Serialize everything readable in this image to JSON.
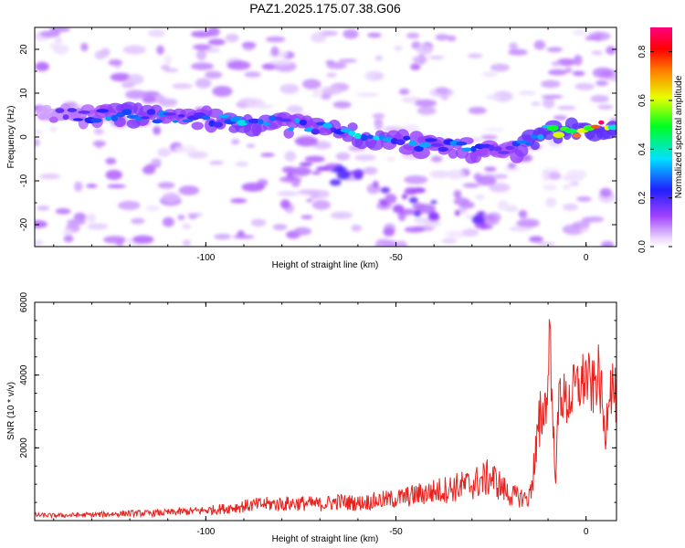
{
  "figure": {
    "title": "PAZ1.2025.175.07.38.G06"
  },
  "chart_data": [
    {
      "type": "heatmap",
      "title": "PAZ1.2025.175.07.38.G06",
      "xlabel": "Height of straight line (km)",
      "ylabel": "Frequency (Hz)",
      "xlim": [
        -145,
        8
      ],
      "ylim": [
        -25,
        25
      ],
      "xticks": [
        -100,
        -50,
        0
      ],
      "yticks": [
        -20,
        -10,
        0,
        10,
        20
      ],
      "grid": false,
      "colorbar": {
        "label": "Normalized spectral amplitude",
        "range": [
          0,
          0.9
        ],
        "ticks": [
          0.0,
          0.2,
          0.4,
          0.6,
          0.8
        ],
        "colormap": "rainbow (purple → blue → cyan → green → yellow → red → magenta)"
      },
      "ridge": {
        "description": "dominant energy band drifting from about +5 Hz at -140 km to about 0 Hz near -50 km, strongest near 0 km",
        "x": [
          -140,
          -130,
          -120,
          -110,
          -100,
          -90,
          -80,
          -70,
          -60,
          -50,
          -40,
          -30,
          -20,
          -10,
          -5,
          0,
          5,
          8
        ],
        "y": [
          5,
          5,
          5,
          4.5,
          4,
          3.5,
          3,
          2,
          0.5,
          -1,
          -2,
          -3,
          -3.5,
          1.5,
          1.5,
          1.5,
          2.5,
          2.5
        ],
        "amplitude": [
          0.15,
          0.25,
          0.35,
          0.3,
          0.3,
          0.35,
          0.3,
          0.3,
          0.35,
          0.3,
          0.3,
          0.3,
          0.25,
          0.5,
          0.65,
          0.8,
          0.85,
          0.5
        ]
      }
    },
    {
      "type": "line",
      "xlabel": "Height of straight line (km)",
      "ylabel": "SNR (10 * v/v)",
      "xlim": [
        -145,
        8
      ],
      "ylim": [
        0,
        6000
      ],
      "xticks": [
        -100,
        -50,
        0
      ],
      "yticks": [
        2000,
        4000,
        6000
      ],
      "grid": false,
      "series": [
        {
          "color": "#e8221e",
          "x": [
            -145,
            -140,
            -135,
            -130,
            -125,
            -120,
            -115,
            -110,
            -105,
            -100,
            -95,
            -90,
            -85,
            -80,
            -75,
            -70,
            -65,
            -60,
            -55,
            -50,
            -45,
            -40,
            -35,
            -30,
            -25,
            -22,
            -20,
            -15,
            -12,
            -10,
            -9.5,
            -9,
            -8,
            -7,
            -5,
            -3,
            -1,
            0,
            1,
            2,
            3,
            4,
            5,
            6,
            7,
            8
          ],
          "y": [
            150,
            140,
            150,
            160,
            180,
            200,
            200,
            220,
            250,
            280,
            330,
            400,
            450,
            460,
            480,
            450,
            520,
            480,
            550,
            600,
            700,
            800,
            900,
            1000,
            1200,
            900,
            700,
            600,
            2600,
            3600,
            6000,
            3200,
            1200,
            3600,
            3200,
            3600,
            3800,
            4000,
            3700,
            3600,
            4100,
            3500,
            2200,
            3800,
            3700,
            3300
          ]
        }
      ]
    }
  ]
}
